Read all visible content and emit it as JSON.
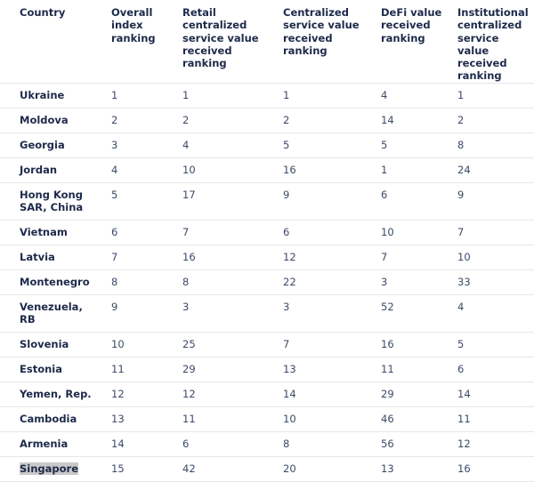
{
  "table": {
    "headers": [
      "Country",
      "Overall index ranking",
      "Retail centralized service value received ranking",
      "Centralized service value received ranking",
      "DeFi value received ranking",
      "Institutional centralized service value received ranking"
    ],
    "rows": [
      [
        "Ukraine",
        1,
        1,
        1,
        4,
        1
      ],
      [
        "Moldova",
        2,
        2,
        2,
        14,
        2
      ],
      [
        "Georgia",
        3,
        4,
        5,
        5,
        8
      ],
      [
        "Jordan",
        4,
        10,
        16,
        1,
        24
      ],
      [
        "Hong Kong SAR, China",
        5,
        17,
        9,
        6,
        9
      ],
      [
        "Vietnam",
        6,
        7,
        6,
        10,
        7
      ],
      [
        "Latvia",
        7,
        16,
        12,
        7,
        10
      ],
      [
        "Montenegro",
        8,
        8,
        22,
        3,
        33
      ],
      [
        "Venezuela, RB",
        9,
        3,
        3,
        52,
        4
      ],
      [
        "Slovenia",
        10,
        25,
        7,
        16,
        5
      ],
      [
        "Estonia",
        11,
        29,
        13,
        11,
        6
      ],
      [
        "Yemen, Rep.",
        12,
        12,
        14,
        29,
        14
      ],
      [
        "Cambodia",
        13,
        11,
        10,
        46,
        11
      ],
      [
        "Armenia",
        14,
        6,
        8,
        56,
        12
      ],
      [
        "Singapore",
        15,
        42,
        20,
        13,
        16
      ]
    ]
  }
}
